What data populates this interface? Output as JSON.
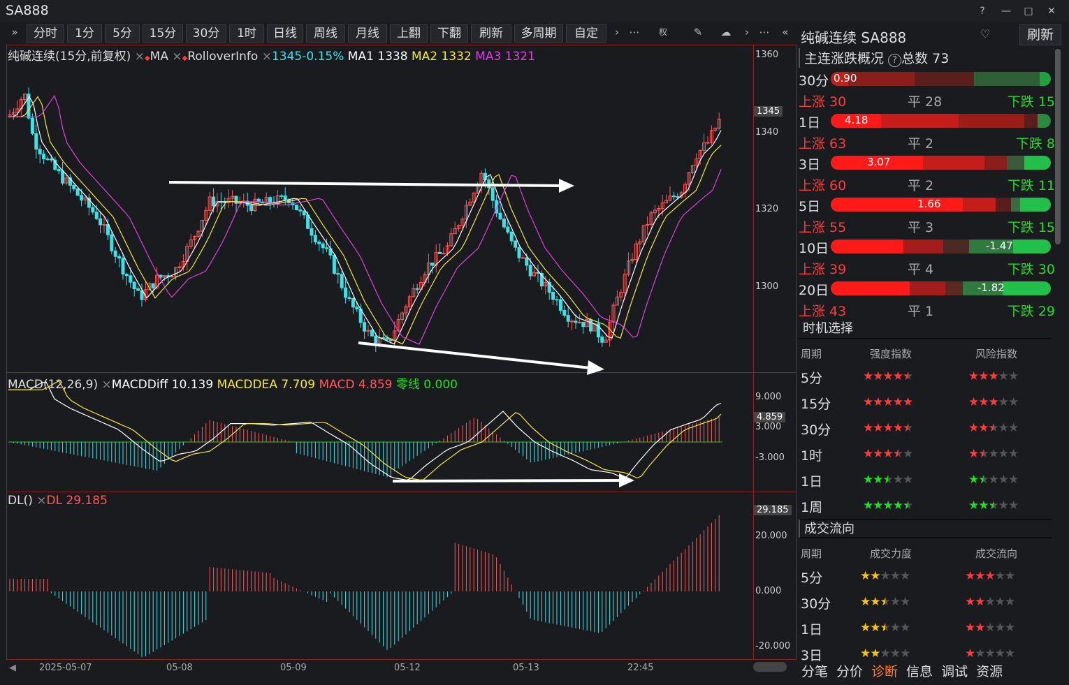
{
  "app": {
    "title": "SA888"
  },
  "window": {
    "help": "?",
    "minimize": "—",
    "maximize": "□",
    "close": "✕"
  },
  "toolbar": {
    "expand": "»",
    "periods": [
      "分时",
      "1分",
      "5分",
      "15分",
      "30分",
      "1时",
      "日线",
      "周线",
      "月线",
      "上翻",
      "下翻",
      "刷新",
      "多周期",
      "自定"
    ],
    "more1": "›",
    "more2": "⋯",
    "right_label": "权",
    "more3": "›",
    "more4": "⋯"
  },
  "main_chart": {
    "legend_name": "纯碱连续(15分,前复权)",
    "ma_label": "MA",
    "rollover_label": "RolloverInfo",
    "price_change": "1345-0.15%",
    "ma1": "MA1 1338",
    "ma2": "MA2 1332",
    "ma3": "MA3 1321",
    "y_ticks": [
      "1360",
      "1340",
      "1320",
      "1300"
    ],
    "current_price": "1345"
  },
  "macd": {
    "legend_name": "MACD(12,26,9)",
    "diff": "MACDDiff 10.139",
    "dea": "MACDDEA 7.709",
    "macd": "MACD 4.859",
    "zero": "零线 0.000",
    "y_ticks": [
      "9.000",
      "3.000",
      "-3.000"
    ],
    "current": "4.859"
  },
  "dl": {
    "legend_name": "DL()",
    "value": "DL 29.185",
    "y_ticks": [
      "20.000",
      "0.000",
      "-20.000"
    ],
    "current": "29.185"
  },
  "x_axis": {
    "labels": [
      "2025-05-07",
      "05-08",
      "05-09",
      "05-12",
      "05-13",
      "22:45"
    ]
  },
  "right_panel": {
    "header": {
      "title": "纯碱连续 SA888",
      "dropdown": "♡",
      "refresh": "刷新"
    },
    "overview": {
      "title": "主连涨跌概况",
      "help": "?",
      "total": "总数 73",
      "rows": [
        {
          "period": "30分",
          "value": "0.90",
          "up": "上涨 30",
          "flat": "平 28",
          "down": "下跌 15"
        },
        {
          "period": "1日",
          "value": "4.18",
          "up": "上涨 63",
          "flat": "平 2",
          "down": "下跌 8"
        },
        {
          "period": "3日",
          "value": "3.07",
          "up": "上涨 60",
          "flat": "平 2",
          "down": "下跌 11"
        },
        {
          "period": "5日",
          "value": "1.66",
          "up": "上涨 55",
          "flat": "平 3",
          "down": "下跌 15"
        },
        {
          "period": "10日",
          "value": "-1.47",
          "up": "上涨 39",
          "flat": "平 4",
          "down": "下跌 30"
        },
        {
          "period": "20日",
          "value": "-1.82",
          "up": "上涨 43",
          "flat": "平 1",
          "down": "下跌 29"
        }
      ]
    },
    "timing": {
      "title": "时机选择",
      "col1": "周期",
      "col2": "强度指数",
      "col3": "风险指数",
      "rows": [
        {
          "period": "5分",
          "strength": 4.5,
          "risk": 3,
          "color": "red"
        },
        {
          "period": "15分",
          "strength": 5,
          "risk": 3,
          "color": "red"
        },
        {
          "period": "30分",
          "strength": 4.5,
          "risk": 2.5,
          "color": "red"
        },
        {
          "period": "1时",
          "strength": 3.5,
          "risk": 1.5,
          "color": "red"
        },
        {
          "period": "1日",
          "strength": 2.5,
          "risk": 1.5,
          "color": "green"
        },
        {
          "period": "1周",
          "strength": 4.5,
          "risk": 2.5,
          "color": "green"
        }
      ]
    },
    "flow": {
      "title": "成交流向",
      "col1": "周期",
      "col2": "成交力度",
      "col3": "成交流向",
      "rows": [
        {
          "period": "5分",
          "power": 2,
          "dir": 3
        },
        {
          "period": "30分",
          "power": 2.5,
          "dir": 2
        },
        {
          "period": "1日",
          "power": 2.5,
          "dir": 2
        },
        {
          "period": "3日",
          "power": 2,
          "dir": 1
        }
      ]
    },
    "tabs": [
      "分笔",
      "分价",
      "诊断",
      "信息",
      "调试",
      "资源"
    ],
    "active_tab": "诊断"
  },
  "colors": {
    "up": "#ff3b3b",
    "down": "#22dd22",
    "cyan": "#3fe0e8",
    "yellow": "#f5e642",
    "magenta": "#e040e0",
    "frame": "#8b2323"
  }
}
